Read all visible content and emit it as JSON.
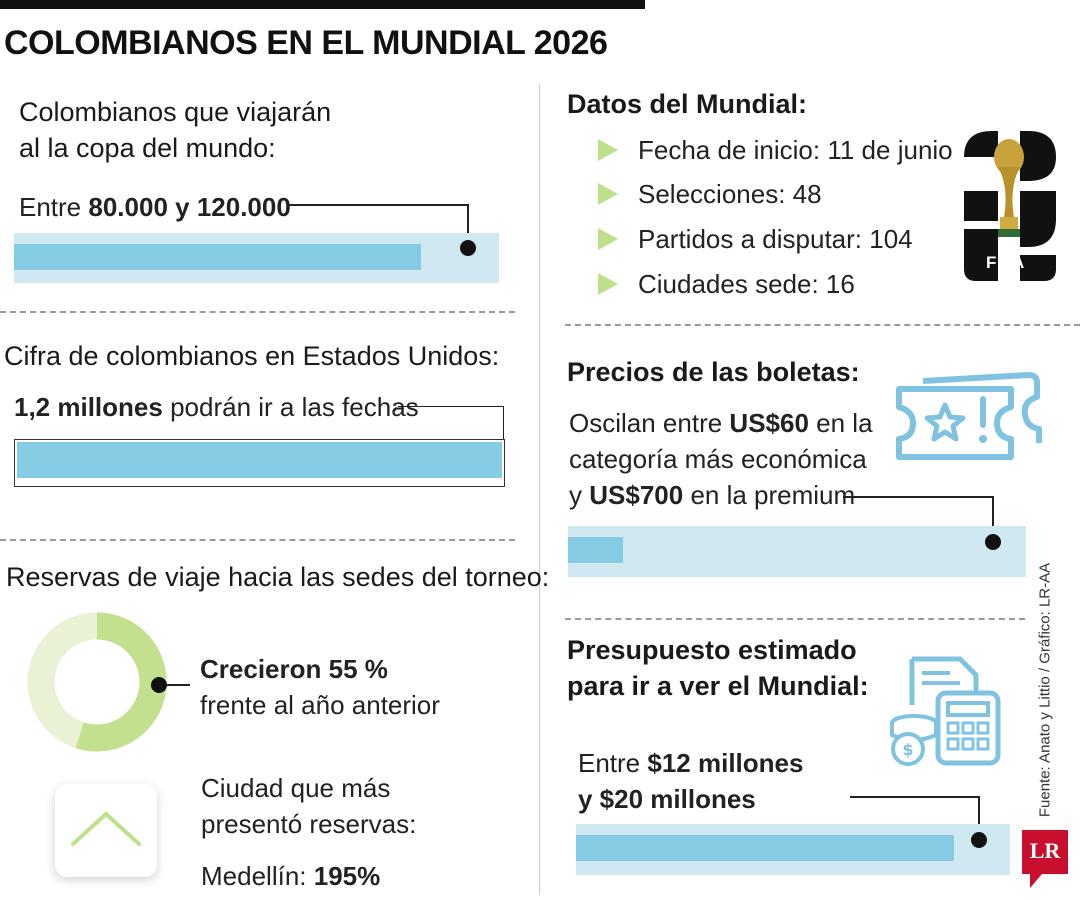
{
  "header": {
    "title": "COLOMBIANOS EN EL MUNDIAL 2026"
  },
  "travelers": {
    "heading_line1": "Colombianos que viajarán",
    "heading_line2": "al la copa del mundo:",
    "prefix": "Entre",
    "range": "80.000 y 120.000",
    "bar_fill_fraction": 0.84
  },
  "usa": {
    "heading": "Cifra de colombianos en Estados Unidos:",
    "value": "1,2 millones",
    "suffix": "podrán ir a las fechas",
    "bar_fill_fraction": 1.0
  },
  "bookings": {
    "heading": "Reservas de viaje hacia las sedes del torneo:",
    "growth_value": "Crecieron 55 %",
    "growth_text": "frente al año anterior",
    "growth_percent": 55,
    "city_heading_line1": "Ciudad que más",
    "city_heading_line2": "presentó reservas:",
    "city_prefix": "Medellín:",
    "city_value": "195%"
  },
  "mundial": {
    "heading": "Datos del Mundial:",
    "facts": [
      {
        "label": "Fecha de inicio:",
        "value": "11 de junio"
      },
      {
        "label": "Selecciones:",
        "value": "48"
      },
      {
        "label": "Partidos a disputar:",
        "value": "104"
      },
      {
        "label": "Ciudades sede:",
        "value": "16"
      }
    ],
    "logo_text": "FIFA"
  },
  "tickets": {
    "heading": "Precios de las boletas:",
    "line1_prefix": "Oscilan entre",
    "line1_value": "US$60",
    "line1_suffix": "en la",
    "line2": "categoría más económica",
    "line3_prefix": "y",
    "line3_value": "US$700",
    "line3_suffix": "en la premium",
    "bar_fill_fraction": 0.12
  },
  "budget": {
    "heading_line1": "Presupuesto estimado",
    "heading_line2": "para ir a ver el Mundial:",
    "line1_prefix": "Entre",
    "line1_value": "$12 millones",
    "line2_value": "y $20 millones",
    "bar_fill_fraction": 0.87
  },
  "footer": {
    "source": "Fuente: Anato y Littio / Gráfico: LR-AA",
    "brand": "LR"
  },
  "colors": {
    "bar_bg": "#cfe8f2",
    "bar_fill": "#86cbe4",
    "accent_green": "#bfe08a",
    "ring_light": "#e9f2d4",
    "icon_blue": "#7fc3e0"
  }
}
